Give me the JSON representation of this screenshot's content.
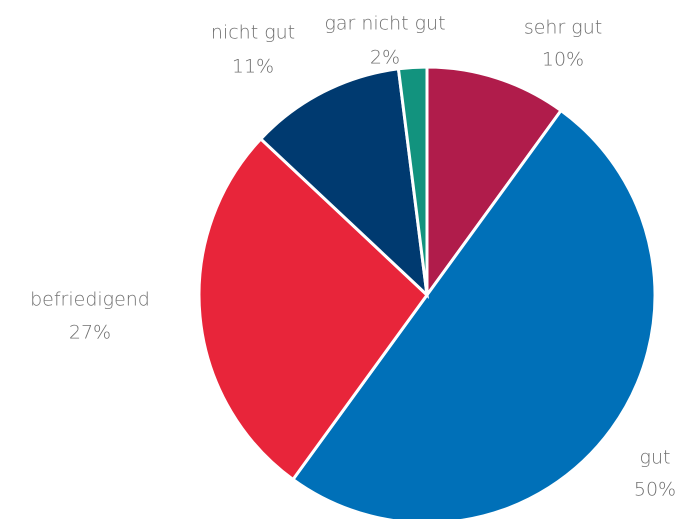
{
  "chart_data": {
    "type": "pie",
    "categories": [
      "sehr gut",
      "gut",
      "befriedigend",
      "nicht gut",
      "gar nicht gut"
    ],
    "values": [
      10,
      50,
      27,
      11,
      2
    ],
    "value_labels": [
      "10%",
      "50%",
      "27%",
      "11%",
      "2%"
    ],
    "colors": [
      "#b01c4b",
      "#0070b8",
      "#e8253a",
      "#003a70",
      "#12937e"
    ]
  }
}
